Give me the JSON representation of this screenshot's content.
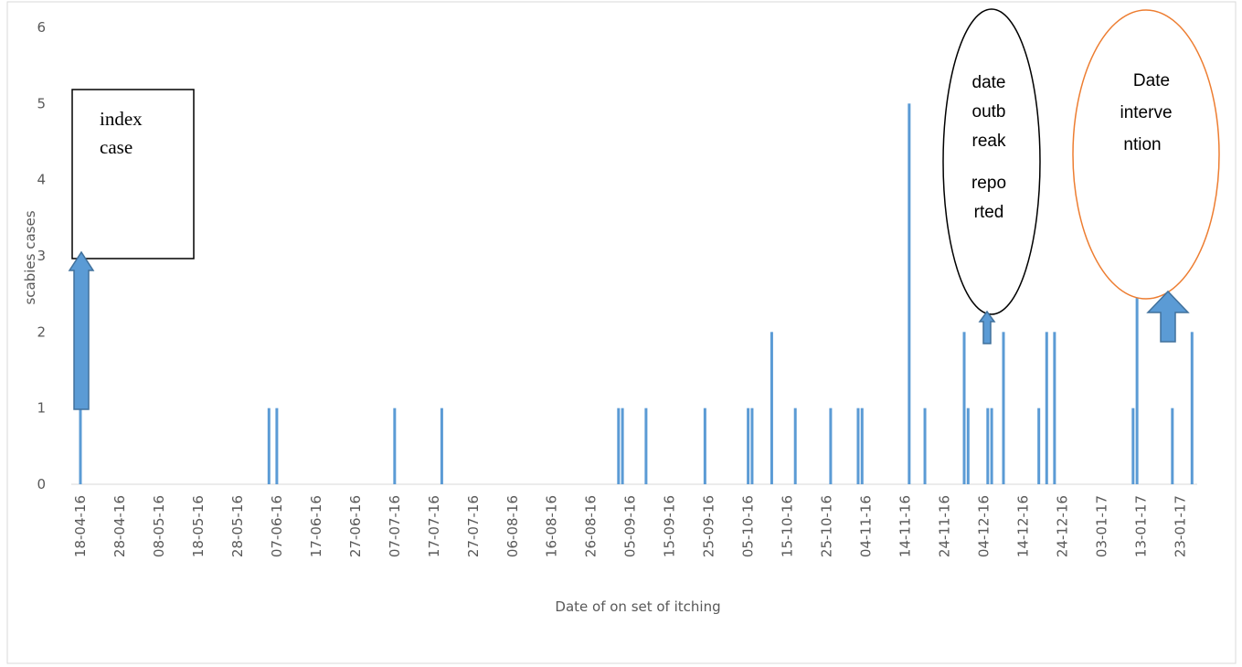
{
  "chart_data": {
    "type": "bar",
    "xlabel": "Date of on set of itching",
    "ylabel": "scabies cases",
    "ylim": [
      0,
      6
    ],
    "yticks": [
      0,
      1,
      2,
      3,
      4,
      5,
      6
    ],
    "x_range": [
      "18-04-16",
      "25-01-17"
    ],
    "x_tick_labels": [
      "18-04-16",
      "28-04-16",
      "08-05-16",
      "18-05-16",
      "28-05-16",
      "07-06-16",
      "17-06-16",
      "27-06-16",
      "07-07-16",
      "17-07-16",
      "27-07-16",
      "06-08-16",
      "16-08-16",
      "26-08-16",
      "05-09-16",
      "15-09-16",
      "25-09-16",
      "05-10-16",
      "15-10-16",
      "25-10-16",
      "04-11-16",
      "14-11-16",
      "24-11-16",
      "04-12-16",
      "14-12-16",
      "24-12-16",
      "03-01-17",
      "13-01-17",
      "23-01-17"
    ],
    "bar_color": "#5b9bd5",
    "grid": false,
    "points": [
      {
        "date": "18-04-16",
        "value": 1
      },
      {
        "date": "05-06-16",
        "value": 1
      },
      {
        "date": "07-06-16",
        "value": 1
      },
      {
        "date": "07-07-16",
        "value": 1
      },
      {
        "date": "19-07-16",
        "value": 1
      },
      {
        "date": "02-09-16",
        "value": 1
      },
      {
        "date": "03-09-16",
        "value": 1
      },
      {
        "date": "09-09-16",
        "value": 1
      },
      {
        "date": "24-09-16",
        "value": 1
      },
      {
        "date": "05-10-16",
        "value": 1
      },
      {
        "date": "06-10-16",
        "value": 1
      },
      {
        "date": "11-10-16",
        "value": 2
      },
      {
        "date": "17-10-16",
        "value": 1
      },
      {
        "date": "26-10-16",
        "value": 1
      },
      {
        "date": "02-11-16",
        "value": 1
      },
      {
        "date": "03-11-16",
        "value": 1
      },
      {
        "date": "15-11-16",
        "value": 5
      },
      {
        "date": "19-11-16",
        "value": 1
      },
      {
        "date": "29-11-16",
        "value": 2
      },
      {
        "date": "30-11-16",
        "value": 1
      },
      {
        "date": "05-12-16",
        "value": 1
      },
      {
        "date": "06-12-16",
        "value": 1
      },
      {
        "date": "09-12-16",
        "value": 2
      },
      {
        "date": "18-12-16",
        "value": 1
      },
      {
        "date": "20-12-16",
        "value": 2
      },
      {
        "date": "22-12-16",
        "value": 2
      },
      {
        "date": "11-01-17",
        "value": 1
      },
      {
        "date": "12-01-17",
        "value": 3
      },
      {
        "date": "21-01-17",
        "value": 1
      },
      {
        "date": "26-01-17",
        "value": 2
      }
    ],
    "annotations": [
      {
        "name": "index-case-box",
        "shape": "rectangle",
        "lines": [
          "index",
          "case"
        ],
        "points_to": "18-04-16",
        "stroke": "#000000"
      },
      {
        "name": "outbreak-reported-ellipse",
        "shape": "ellipse",
        "lines": [
          "date",
          "outb",
          "reak",
          "repo",
          "rted"
        ],
        "points_to": "01-12-16",
        "stroke": "#000000"
      },
      {
        "name": "intervention-ellipse",
        "shape": "ellipse",
        "lines": [
          "Date",
          "interve",
          "ntion"
        ],
        "points_to": "24-01-17",
        "stroke": "#ed7d31"
      }
    ],
    "arrow_color": "#5b9bd5"
  }
}
